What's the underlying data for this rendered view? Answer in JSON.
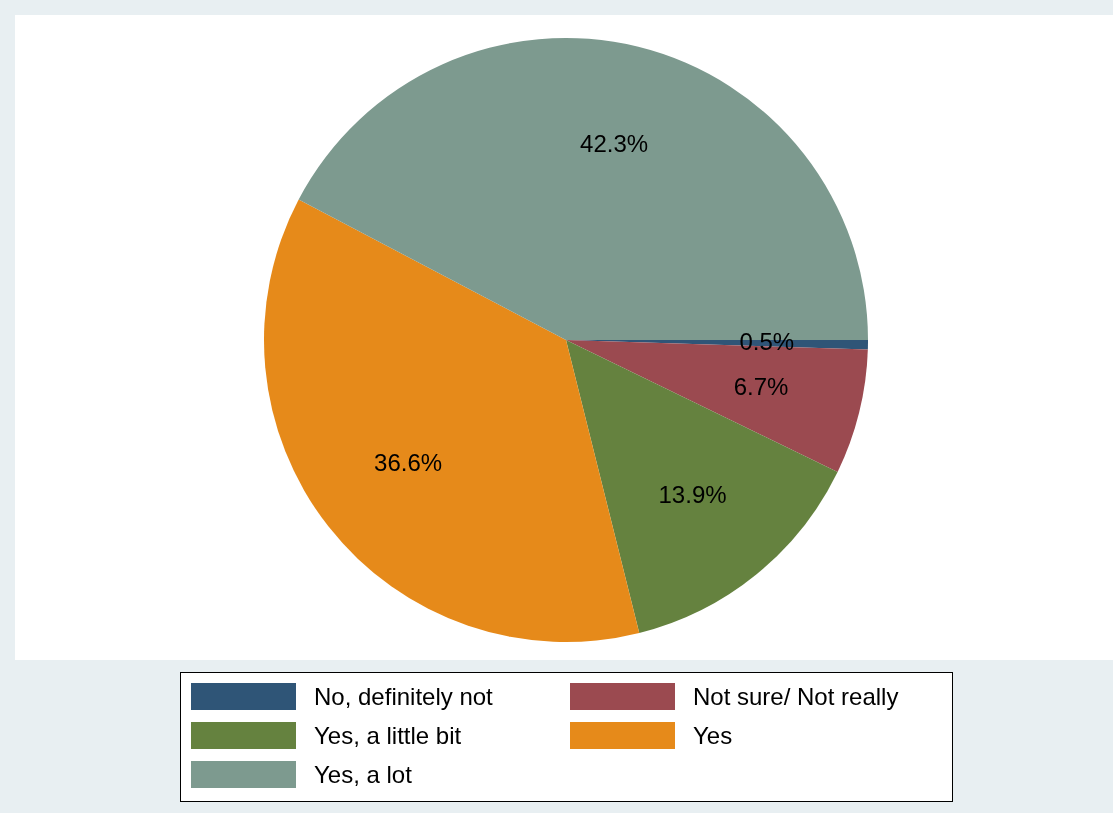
{
  "chart_data": {
    "type": "pie",
    "categories": [
      "No, definitely not",
      "Not sure/ Not really",
      "Yes, a little bit",
      "Yes",
      "Yes, a lot"
    ],
    "values": [
      0.5,
      6.7,
      13.9,
      36.6,
      42.3
    ],
    "value_labels": [
      "0.5%",
      "6.7%",
      "13.9%",
      "36.6%",
      "42.3%"
    ],
    "colors": [
      "#2f5577",
      "#9b4a50",
      "#65823f",
      "#e68a1a",
      "#7d9a8f"
    ],
    "legend": "bottom"
  }
}
